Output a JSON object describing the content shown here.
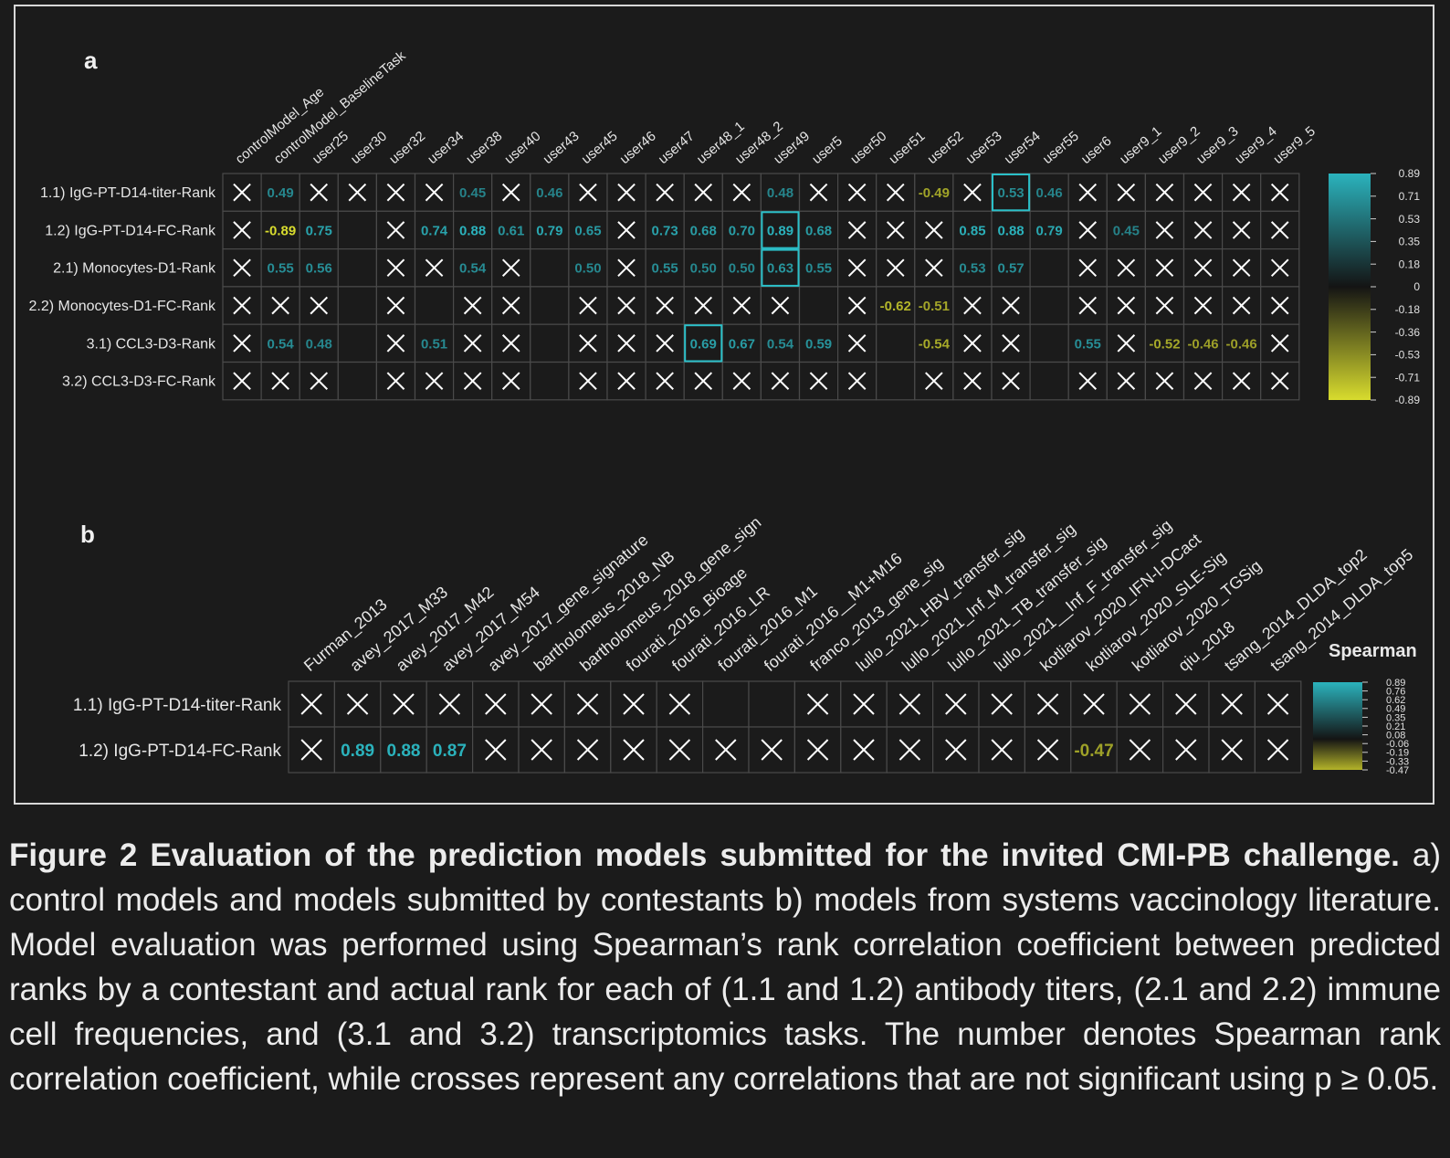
{
  "panel_a_label": "a",
  "panel_b_label": "b",
  "legend_b_title": "Spearman",
  "caption": {
    "title": "Figure 2 Evaluation of the prediction models submitted for the invited CMI-PB challenge.",
    "body": "a) control models and models submitted by contestants b) models from systems vaccinology literature. Model evaluation was performed using Spearman’s rank correlation coefficient between predicted ranks by a contestant and actual rank for each of (1.1 and 1.2) antibody titers, (2.1 and 2.2) immune cell frequencies, and (3.1 and 3.2) transcriptomics tasks. The number denotes Spearman rank correlation coefficient, while crosses represent any correlations that are not significant using p ≥ 0.05."
  },
  "colors": {
    "high": "#2bb3bd",
    "mid": "#1b1b1b",
    "low": "#d8dc2e",
    "cross": "#ffffff",
    "grid": "#4a4a4a",
    "highlight": "#2bc0c9"
  },
  "chart_data": [
    {
      "type": "heatmap",
      "panel": "a",
      "colorbar_range": [
        -0.89,
        0.89
      ],
      "colorbar_ticks": [
        "0.89",
        "0.71",
        "0.53",
        "0.35",
        "0.18",
        "0",
        "-0.18",
        "-0.36",
        "-0.53",
        "-0.71",
        "-0.89"
      ],
      "columns": [
        "controlModel_Age",
        "controlModel_BaselineTask",
        "user25",
        "user30",
        "user32",
        "user34",
        "user38",
        "user40",
        "user43",
        "user45",
        "user46",
        "user47",
        "user48_1",
        "user48_2",
        "user49",
        "user5",
        "user50",
        "user51",
        "user52",
        "user53",
        "user54",
        "user55",
        "user6",
        "user9_1",
        "user9_2",
        "user9_3",
        "user9_4",
        "user9_5"
      ],
      "rows": [
        "1.1) IgG-PT-D14-titer-Rank",
        "1.2) IgG-PT-D14-FC-Rank",
        "2.1) Monocytes-D1-Rank",
        "2.2) Monocytes-D1-FC-Rank",
        "3.1) CCL3-D3-Rank",
        "3.2) CCL3-D3-FC-Rank"
      ],
      "cells": [
        [
          "X",
          "0.49",
          "X",
          "X",
          "X",
          "X",
          "0.45",
          "X",
          "0.46",
          "X",
          "X",
          "X",
          "X",
          "X",
          "0.48",
          "X",
          "X",
          "X",
          "-0.49",
          "X",
          "0.53",
          "0.46",
          "X",
          "X",
          "X",
          "X",
          "X",
          "X"
        ],
        [
          "X",
          "-0.89",
          "0.75",
          "",
          "X",
          "0.74",
          "0.88",
          "0.61",
          "0.79",
          "0.65",
          "X",
          "0.73",
          "0.68",
          "0.70",
          "0.89",
          "0.68",
          "X",
          "X",
          "X",
          "0.85",
          "0.88",
          "0.79",
          "X",
          "0.45",
          "X",
          "X",
          "X",
          "X"
        ],
        [
          "X",
          "0.55",
          "0.56",
          "",
          "X",
          "X",
          "0.54",
          "X",
          "",
          "0.50",
          "X",
          "0.55",
          "0.50",
          "0.50",
          "0.63",
          "0.55",
          "X",
          "X",
          "X",
          "0.53",
          "0.57",
          "",
          "X",
          "X",
          "X",
          "X",
          "X",
          "X"
        ],
        [
          "X",
          "X",
          "X",
          "",
          "X",
          "",
          "X",
          "X",
          "",
          "X",
          "X",
          "X",
          "X",
          "X",
          "X",
          "",
          "X",
          "-0.62",
          "-0.51",
          "X",
          "X",
          "",
          "X",
          "X",
          "X",
          "X",
          "X",
          "X"
        ],
        [
          "X",
          "0.54",
          "0.48",
          "",
          "X",
          "0.51",
          "X",
          "X",
          "",
          "X",
          "X",
          "X",
          "0.69",
          "0.67",
          "0.54",
          "0.59",
          "X",
          "",
          "-0.54",
          "X",
          "X",
          "",
          "0.55",
          "X",
          "-0.52",
          "-0.46",
          "-0.46",
          "X"
        ],
        [
          "X",
          "X",
          "X",
          "",
          "X",
          "X",
          "X",
          "X",
          "",
          "X",
          "X",
          "X",
          "X",
          "X",
          "X",
          "X",
          "X",
          "",
          "X",
          "X",
          "X",
          "",
          "X",
          "X",
          "X",
          "X",
          "X",
          "X"
        ]
      ],
      "highlights": [
        [
          0,
          20
        ],
        [
          1,
          14
        ],
        [
          2,
          14
        ],
        [
          4,
          12
        ]
      ]
    },
    {
      "type": "heatmap",
      "panel": "b",
      "legend_title": "Spearman",
      "colorbar_range": [
        -0.47,
        0.89
      ],
      "colorbar_ticks": [
        "0.89",
        "0.76",
        "0.62",
        "0.49",
        "0.35",
        "0.21",
        "0.08",
        "-0.06",
        "-0.19",
        "-0.33",
        "-0.47"
      ],
      "columns": [
        "Furman_2013",
        "avey_2017_M33",
        "avey_2017_M42",
        "avey_2017_M54",
        "avey_2017_gene_signature",
        "bartholomeus_2018_NB",
        "bartholomeus_2018_gene_sign",
        "fourati_2016_Bioage",
        "fourati_2016_LR",
        "fourati_2016_M1",
        "fourati_2016__M1+M16",
        "franco_2013_gene_sig",
        "lullo_2021_HBV_transfer_sig",
        "lullo_2021_Inf_M_transfer_sig",
        "lullo_2021_TB_transfer_sig",
        "lullo_2021__Inf_F_transfer_sig",
        "kotliarov_2020_IFN-I-DCact",
        "kotliarov_2020_SLE-Sig",
        "kotliarov_2020_TGSig",
        "qiu_2018",
        "tsang_2014_DLDA_top2",
        "tsang_2014_DLDA_top5"
      ],
      "rows": [
        "1.1) IgG-PT-D14-titer-Rank",
        "1.2) IgG-PT-D14-FC-Rank"
      ],
      "cells": [
        [
          "X",
          "X",
          "X",
          "X",
          "X",
          "X",
          "X",
          "X",
          "X",
          "",
          "",
          "X",
          "X",
          "X",
          "X",
          "X",
          "X",
          "X",
          "X",
          "X",
          "X",
          "X"
        ],
        [
          "X",
          "0.89",
          "0.88",
          "0.87",
          "X",
          "X",
          "X",
          "X",
          "X",
          "X",
          "X",
          "X",
          "X",
          "X",
          "X",
          "X",
          "X",
          "-0.47",
          "X",
          "X",
          "X",
          "X"
        ]
      ]
    }
  ]
}
